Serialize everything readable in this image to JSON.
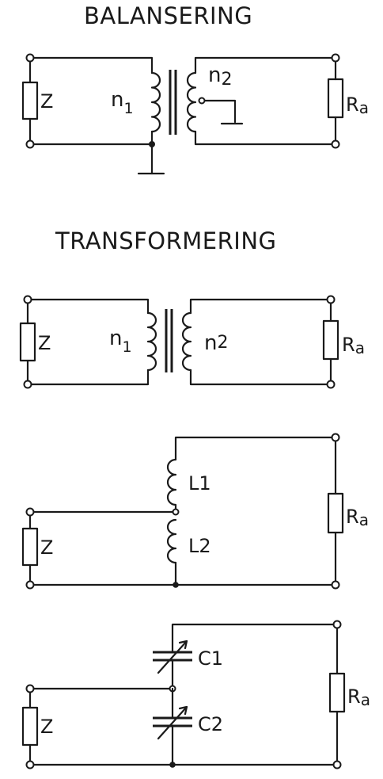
{
  "titles": {
    "balancing": "BALANSERING",
    "transforming": "TRANSFORMERING"
  },
  "labels": {
    "z": "Z",
    "n": "n",
    "sub1": "1",
    "sub2": "2",
    "r": "R",
    "r_sub": "a",
    "l1": "L1",
    "l2": "L2",
    "c1": "C1",
    "c2": "C2"
  }
}
